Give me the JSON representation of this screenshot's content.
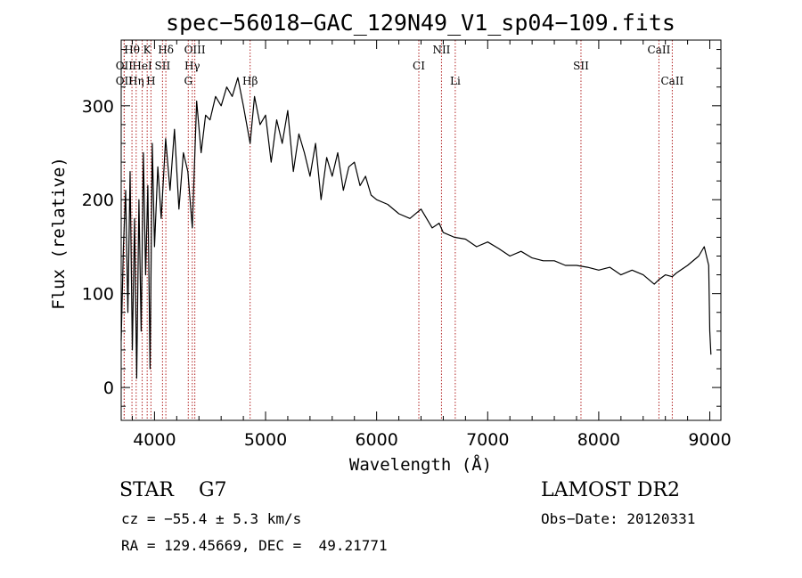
{
  "chart_data": {
    "type": "line",
    "title": "spec−56018−GAC_129N49_V1_sp04−109.fits",
    "xlabel": "Wavelength (Å)",
    "ylabel": "Flux (relative)",
    "xlim": [
      3700,
      9100
    ],
    "ylim": [
      -35,
      370
    ],
    "x_ticks": [
      4000,
      5000,
      6000,
      7000,
      8000,
      9000
    ],
    "y_ticks": [
      0,
      100,
      200,
      300
    ],
    "series": [
      {
        "x": [
          3700,
          3720,
          3740,
          3760,
          3780,
          3800,
          3820,
          3840,
          3860,
          3880,
          3900,
          3920,
          3940,
          3960,
          3980,
          4000,
          4030,
          4060,
          4100,
          4140,
          4180,
          4220,
          4260,
          4300,
          4340,
          4380,
          4420,
          4460,
          4500,
          4550,
          4600,
          4650,
          4700,
          4750,
          4800,
          4861,
          4900,
          4950,
          5000,
          5050,
          5100,
          5150,
          5200,
          5250,
          5300,
          5350,
          5400,
          5450,
          5500,
          5550,
          5600,
          5650,
          5700,
          5750,
          5800,
          5850,
          5900,
          5950,
          6000,
          6100,
          6200,
          6300,
          6400,
          6500,
          6563,
          6600,
          6700,
          6800,
          6900,
          7000,
          7100,
          7200,
          7300,
          7400,
          7500,
          7600,
          7700,
          7800,
          7900,
          8000,
          8100,
          8200,
          8300,
          8400,
          8500,
          8542,
          8600,
          8662,
          8700,
          8800,
          8900,
          8950,
          8990,
          9000,
          9010
        ],
        "y": [
          50,
          150,
          210,
          80,
          230,
          40,
          180,
          10,
          200,
          60,
          250,
          120,
          215,
          20,
          260,
          150,
          235,
          180,
          265,
          210,
          275,
          190,
          250,
          230,
          170,
          305,
          250,
          290,
          285,
          310,
          300,
          320,
          310,
          330,
          300,
          260,
          310,
          280,
          290,
          240,
          285,
          260,
          295,
          230,
          270,
          250,
          225,
          260,
          200,
          245,
          225,
          250,
          210,
          235,
          240,
          215,
          225,
          205,
          200,
          195,
          185,
          180,
          190,
          170,
          175,
          165,
          160,
          158,
          150,
          155,
          148,
          140,
          145,
          138,
          135,
          135,
          130,
          130,
          128,
          125,
          128,
          120,
          125,
          120,
          110,
          115,
          120,
          118,
          122,
          130,
          140,
          150,
          130,
          60,
          35
        ]
      }
    ],
    "spectral_lines": [
      {
        "name": "Hθ",
        "wave": 3797,
        "row": 0
      },
      {
        "name": "K",
        "wave": 3934,
        "row": 0
      },
      {
        "name": "Hδ",
        "wave": 4102,
        "row": 0
      },
      {
        "name": "OIII",
        "wave": 4363,
        "row": 0
      },
      {
        "name": "NII",
        "wave": 6584,
        "row": 0
      },
      {
        "name": "CaII",
        "wave": 8542,
        "row": 0
      },
      {
        "name": "OII",
        "wave": 3727,
        "row": 1
      },
      {
        "name": "HeI",
        "wave": 3889,
        "row": 1
      },
      {
        "name": "SII",
        "wave": 4072,
        "row": 1
      },
      {
        "name": "Hγ",
        "wave": 4340,
        "row": 1
      },
      {
        "name": "CI",
        "wave": 6380,
        "row": 1
      },
      {
        "name": "SII",
        "wave": 7840,
        "row": 1
      },
      {
        "name": "OII",
        "wave": 3727,
        "row": 2
      },
      {
        "name": "Hη",
        "wave": 3835,
        "row": 2
      },
      {
        "name": "H",
        "wave": 3968,
        "row": 2
      },
      {
        "name": "G",
        "wave": 4304,
        "row": 2
      },
      {
        "name": "Hβ",
        "wave": 4861,
        "row": 2
      },
      {
        "name": "Li",
        "wave": 6708,
        "row": 2
      },
      {
        "name": "CaII",
        "wave": 8662,
        "row": 2
      }
    ],
    "line_color": "#000000",
    "marker_color": "#b22222",
    "grid": false
  },
  "info": {
    "class": "STAR    G7",
    "survey": "LAMOST DR2",
    "cz": "cz = −55.4 ± 5.3 km/s",
    "obs_date": "Obs−Date: 20120331",
    "coords": "RA = 129.45669, DEC =  49.21771"
  }
}
